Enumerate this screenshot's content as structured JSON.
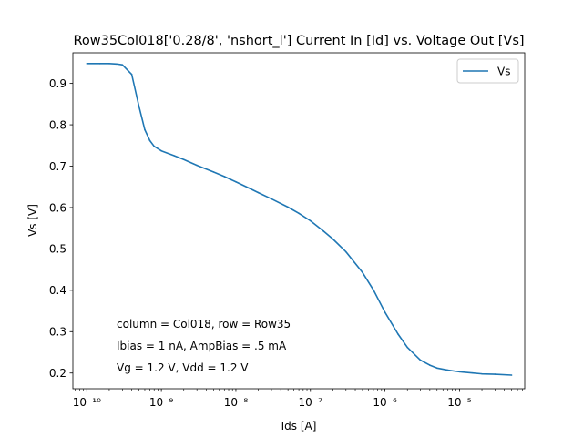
{
  "chart_data": {
    "type": "line",
    "title": "Row35Col018['0.28/8', 'nshort_l'] Current In [Id] vs. Voltage Out [Vs]",
    "xlabel": "Ids [A]",
    "ylabel": "Vs [V]",
    "xscale": "log",
    "xlim": [
      6.5e-11,
      7.5e-05
    ],
    "ylim": [
      0.162,
      0.974
    ],
    "x_ticks": [
      {
        "value": 1e-10,
        "label": "10⁻¹⁰"
      },
      {
        "value": 1e-09,
        "label": "10⁻⁹"
      },
      {
        "value": 1e-08,
        "label": "10⁻⁸"
      },
      {
        "value": 1e-07,
        "label": "10⁻⁷"
      },
      {
        "value": 1e-06,
        "label": "10⁻⁶"
      },
      {
        "value": 1e-05,
        "label": "10⁻⁵"
      }
    ],
    "y_ticks": [
      {
        "value": 0.2,
        "label": "0.2"
      },
      {
        "value": 0.3,
        "label": "0.3"
      },
      {
        "value": 0.4,
        "label": "0.4"
      },
      {
        "value": 0.5,
        "label": "0.5"
      },
      {
        "value": 0.6,
        "label": "0.6"
      },
      {
        "value": 0.7,
        "label": "0.7"
      },
      {
        "value": 0.8,
        "label": "0.8"
      },
      {
        "value": 0.9,
        "label": "0.9"
      }
    ],
    "grid": false,
    "legend_position": "top-right",
    "series": [
      {
        "name": "Vs",
        "color": "#1f77b4",
        "x": [
          1e-10,
          1.5e-10,
          2e-10,
          2.5e-10,
          3e-10,
          4e-10,
          5e-10,
          6e-10,
          7e-10,
          8e-10,
          1e-09,
          1.5e-09,
          2e-09,
          3e-09,
          5e-09,
          7e-09,
          1e-08,
          1.5e-08,
          2e-08,
          3e-08,
          5e-08,
          7e-08,
          1e-07,
          1.5e-07,
          2e-07,
          3e-07,
          5e-07,
          7e-07,
          1e-06,
          1.5e-06,
          2e-06,
          3e-06,
          4e-06,
          5e-06,
          7e-06,
          1e-05,
          1.5e-05,
          2e-05,
          3e-05,
          5e-05
        ],
        "y": [
          0.948,
          0.948,
          0.948,
          0.947,
          0.945,
          0.922,
          0.845,
          0.788,
          0.762,
          0.748,
          0.737,
          0.725,
          0.716,
          0.702,
          0.686,
          0.675,
          0.662,
          0.647,
          0.636,
          0.621,
          0.601,
          0.586,
          0.568,
          0.543,
          0.524,
          0.493,
          0.443,
          0.401,
          0.347,
          0.294,
          0.262,
          0.231,
          0.219,
          0.212,
          0.207,
          0.203,
          0.2,
          0.198,
          0.197,
          0.195
        ]
      }
    ],
    "annotations": [
      "column = Col018, row = Row35",
      "Ibias = 1 nA, AmpBias = .5 mA",
      "Vg = 1.2 V, Vdd = 1.2 V"
    ]
  }
}
